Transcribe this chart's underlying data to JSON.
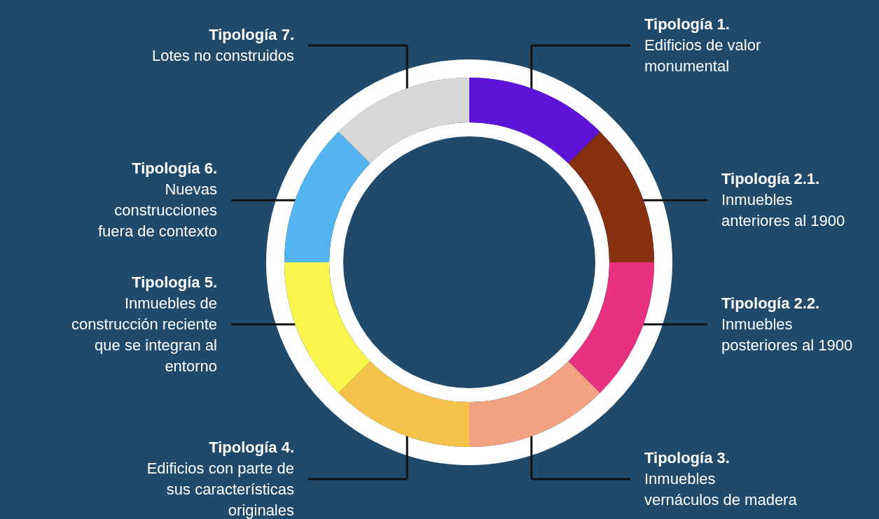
{
  "chart_data": {
    "type": "donut",
    "categories": [
      "Tipología 1.\nEdificios de valor\nmonumental",
      "Tipología 2.1.\nInmuebles\nanteriores al 1900",
      "Tipología 2.2.\nInmuebles\nposteriores al 1900",
      "Tipología 3.\nInmuebles\nvernáculos de madera",
      "Tipología 4.\nEdificios con parte de\nsus características\noriginales",
      "Tipología 5.\nInmuebles de\nconstrucción reciente\nque se integran al\nentorno",
      "Tipología 6.\nNuevas\nconstrucciones\nfuera de contexto",
      "Tipología 7.\nLotes no construidos"
    ],
    "values": [
      12.5,
      12.5,
      12.5,
      12.5,
      12.5,
      12.5,
      12.5,
      12.5
    ],
    "colors": [
      "#5f12d8",
      "#86300f",
      "#e8327f",
      "#f2a283",
      "#f5c24a",
      "#f9f54a",
      "#52b5ef",
      "#d8d8d8"
    ]
  }
}
